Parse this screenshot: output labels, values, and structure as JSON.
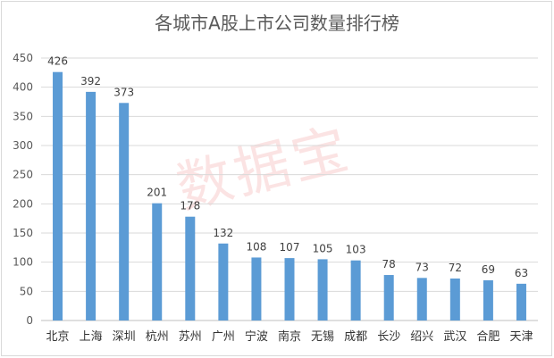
{
  "chart_data": {
    "type": "bar",
    "title": "各城市A股上市公司数量排行榜",
    "watermark": "数据宝",
    "categories": [
      "北京",
      "上海",
      "深圳",
      "杭州",
      "苏州",
      "广州",
      "宁波",
      "南京",
      "无锡",
      "成都",
      "长沙",
      "绍兴",
      "武汉",
      "合肥",
      "天津"
    ],
    "values": [
      426,
      392,
      373,
      201,
      178,
      132,
      108,
      107,
      105,
      103,
      78,
      73,
      72,
      69,
      63
    ],
    "ylim": [
      0,
      450
    ],
    "yticks": [
      0,
      50,
      100,
      150,
      200,
      250,
      300,
      350,
      400,
      450
    ],
    "xlabel": "",
    "ylabel": "",
    "grid": true,
    "bar_color": "#5b9bd5"
  }
}
